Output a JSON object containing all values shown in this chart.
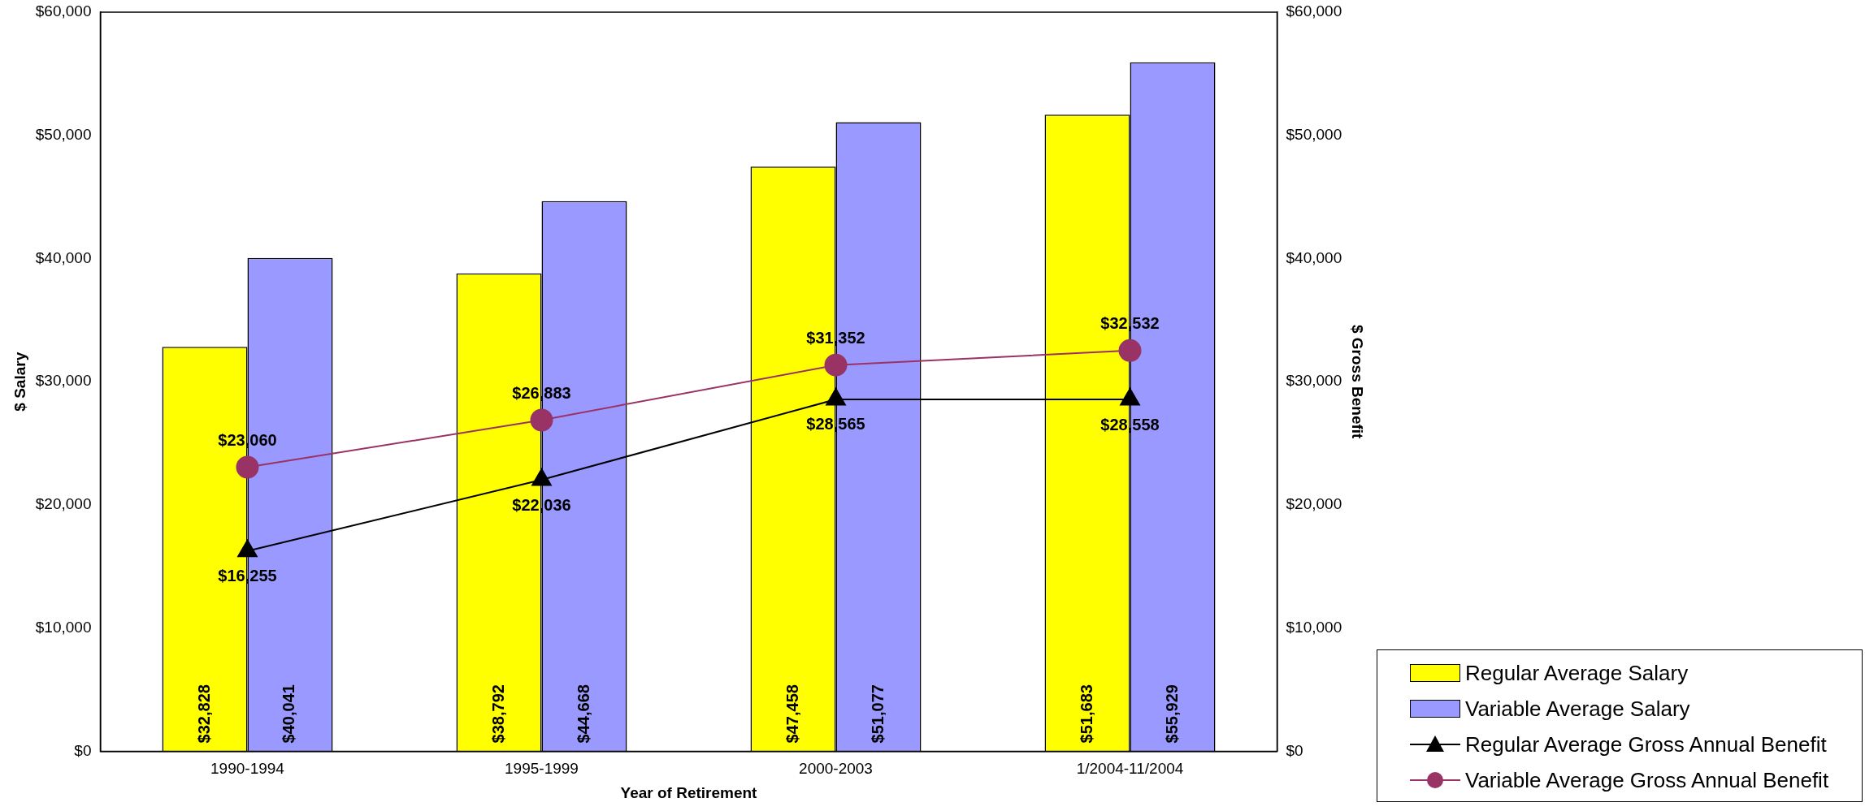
{
  "chart_data": {
    "type": "bar",
    "xlabel": "Year of Retirement",
    "ylabel": "$ Salary",
    "y2label": "$ Gross Benefit",
    "categories": [
      "1990-1994",
      "1995-1999",
      "2000-2003",
      "1/2004-11/2004"
    ],
    "series": [
      {
        "name": "Regular Average Salary",
        "color": "#ffff00",
        "values": [
          32828,
          38792,
          47458,
          51683
        ],
        "value_labels": [
          "$32,828",
          "$38,792",
          "$47,458",
          "$51,683"
        ]
      },
      {
        "name": "Variable Average Salary",
        "color": "#9999ff",
        "values": [
          40041,
          44668,
          51077,
          55929
        ],
        "value_labels": [
          "$40,041",
          "$44,668",
          "$51,077",
          "$55,929"
        ]
      },
      {
        "name": "Regular Average Gross Annual Benefit",
        "type": "line",
        "axis": "y2",
        "marker": "triangle",
        "color": "#000000",
        "values": [
          16255,
          22036,
          28565,
          28558
        ],
        "value_labels": [
          "$16,255",
          "$22,036",
          "$28,565",
          "$28,558"
        ]
      },
      {
        "name": "Variable Average Gross Annual Benefit",
        "type": "line",
        "axis": "y2",
        "marker": "circle",
        "color": "#993366",
        "values": [
          23060,
          26883,
          31352,
          32532
        ],
        "value_labels": [
          "$23,060",
          "$26,883",
          "$31,352",
          "$32,532"
        ]
      }
    ],
    "ylim": [
      0,
      60000
    ],
    "yticks": [
      {
        "value": 0,
        "label": "$0"
      },
      {
        "value": 10000,
        "label": "$10,000"
      },
      {
        "value": 20000,
        "label": "$20,000"
      },
      {
        "value": 30000,
        "label": "$30,000"
      },
      {
        "value": 40000,
        "label": "$40,000"
      },
      {
        "value": 50000,
        "label": "$50,000"
      },
      {
        "value": 60000,
        "label": "$60,000"
      }
    ],
    "y2lim": [
      0,
      60000
    ],
    "y2ticks": [
      {
        "value": 0,
        "label": "$0"
      },
      {
        "value": 10000,
        "label": "$10,000"
      },
      {
        "value": 20000,
        "label": "$20,000"
      },
      {
        "value": 30000,
        "label": "$30,000"
      },
      {
        "value": 40000,
        "label": "$40,000"
      },
      {
        "value": 50000,
        "label": "$50,000"
      },
      {
        "value": 60000,
        "label": "$60,000"
      }
    ],
    "grid": false,
    "legend": "bottom right"
  }
}
